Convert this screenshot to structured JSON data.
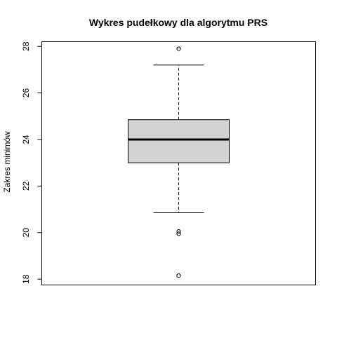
{
  "chart_data": {
    "type": "boxplot",
    "title": "Wykres pudełkowy dla algorytmu PRS",
    "xlabel": "",
    "ylabel": "Zakres minimów",
    "ylim": [
      17.75,
      28.2
    ],
    "yticks": [
      18,
      20,
      22,
      24,
      26,
      28
    ],
    "ytick_labels": [
      "18",
      "20",
      "22",
      "24",
      "26",
      "28"
    ],
    "box": {
      "min_whisker": 20.85,
      "q1": 23.0,
      "median": 24.0,
      "q3": 24.85,
      "max_whisker": 27.2
    },
    "outliers": [
      27.9,
      20.05,
      19.95,
      18.15
    ],
    "colors": {
      "box_fill": "#d3d3d3",
      "stroke": "#000000"
    },
    "grid": false
  }
}
